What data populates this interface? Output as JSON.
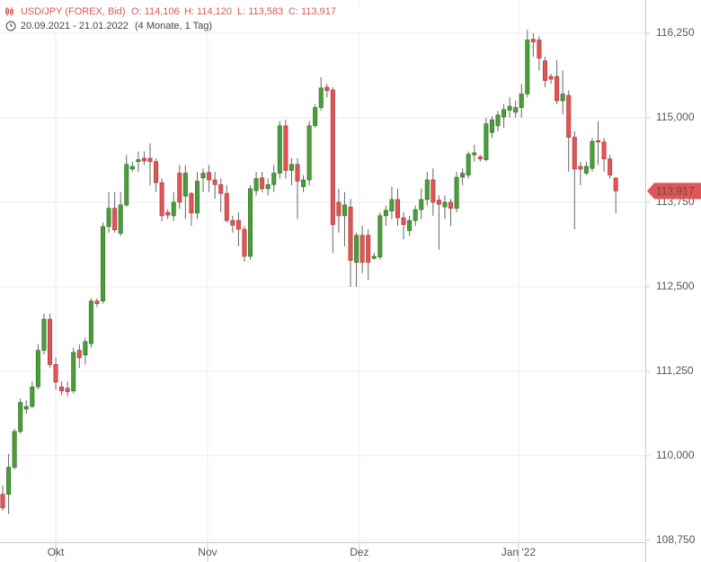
{
  "chart_data": {
    "type": "candlestick",
    "title": "USD/JPY (FOREX, Bid)",
    "ohlc_labels": [
      "O: 114,106",
      "H: 114,120",
      "L: 113,583",
      "C: 113,917"
    ],
    "date_range": "20.09.2021 - 21.01.2022",
    "period": "(4 Monate, 1 Tag)",
    "price_tag": "113,917",
    "up_color": "#4a9e3a",
    "down_color": "#e05555",
    "grid": true,
    "xlim": [
      -0.46,
      109
    ],
    "xticks": [
      {
        "value": 9,
        "label": "Okt"
      },
      {
        "value": 34.75,
        "label": "Nov"
      },
      {
        "value": 60.5,
        "label": "Dez"
      },
      {
        "value": 87.5,
        "label": "Jan '22"
      }
    ],
    "ylim": [
      108.43,
      116.74
    ],
    "yticks": [
      {
        "value": 108.75,
        "label": "108,750"
      },
      {
        "value": 110,
        "label": "110,000"
      },
      {
        "value": 111.25,
        "label": "111,250"
      },
      {
        "value": 112.5,
        "label": "112,500"
      },
      {
        "value": 113.75,
        "label": "113,750"
      },
      {
        "value": 115,
        "label": "115,000"
      },
      {
        "value": 116.25,
        "label": "116,250"
      }
    ],
    "open": [
      109.43,
      109.43,
      109.83,
      110.36,
      110.69,
      110.73,
      111.02,
      111.56,
      112.02,
      111.35,
      111.02,
      111.0,
      110.96,
      111.56,
      111.49,
      111.66,
      112.29,
      112.29,
      113.39,
      113.66,
      113.29,
      113.71,
      114.24,
      114.35,
      114.4,
      114.4,
      114.35,
      114.04,
      113.6,
      113.55,
      114.18,
      113.84,
      113.88,
      113.59,
      114.11,
      114.19,
      114.08,
      114.01,
      113.88,
      113.48,
      113.48,
      113.35,
      112.95,
      113.92,
      114.11,
      113.95,
      114.01,
      114.18,
      114.88,
      114.22,
      114.31,
      113.98,
      114.08,
      114.88,
      115.15,
      115.45,
      115.41,
      113.75,
      113.55,
      113.68,
      112.86,
      113.26,
      113.26,
      112.92,
      112.94,
      113.55,
      113.62,
      113.79,
      113.52,
      113.33,
      113.48,
      113.64,
      113.79,
      114.08,
      113.78,
      113.68,
      113.75,
      113.66,
      114.12,
      114.15,
      114.45,
      114.42,
      114.38,
      114.78,
      114.88,
      115.01,
      115.11,
      115.08,
      115.15,
      115.35,
      116.16,
      116.15,
      115.84,
      115.61,
      115.61,
      115.25,
      115.33,
      114.71,
      114.28,
      114.18,
      114.25,
      114.66,
      114.64,
      114.39,
      114.106
    ],
    "high": [
      109.56,
      110.03,
      110.4,
      110.85,
      110.82,
      111.1,
      111.65,
      112.1,
      112.1,
      111.45,
      111.1,
      111.1,
      111.6,
      111.65,
      111.75,
      112.33,
      112.33,
      113.45,
      113.9,
      113.9,
      113.9,
      114.45,
      114.35,
      114.5,
      114.5,
      114.62,
      114.4,
      114.1,
      113.65,
      113.9,
      114.3,
      114.3,
      113.9,
      114.2,
      114.25,
      114.3,
      114.2,
      114.1,
      114.0,
      113.55,
      113.6,
      113.4,
      114.0,
      114.2,
      114.2,
      114.1,
      114.3,
      114.95,
      114.97,
      114.4,
      114.4,
      114.15,
      114.95,
      115.2,
      115.6,
      115.5,
      115.45,
      113.95,
      113.9,
      113.8,
      113.3,
      113.4,
      113.35,
      113.0,
      113.6,
      113.7,
      113.98,
      113.95,
      113.6,
      113.55,
      113.7,
      113.95,
      114.2,
      114.25,
      113.85,
      113.85,
      113.8,
      114.2,
      114.25,
      114.5,
      114.6,
      114.45,
      115.0,
      115.02,
      115.1,
      115.2,
      115.3,
      115.25,
      115.5,
      116.3,
      116.25,
      116.2,
      115.9,
      115.65,
      115.85,
      115.7,
      115.4,
      114.8,
      114.35,
      114.35,
      114.7,
      114.95,
      114.7,
      114.45,
      114.12
    ],
    "low": [
      109.19,
      109.14,
      109.8,
      110.33,
      110.62,
      110.7,
      110.98,
      111.5,
      111.3,
      110.98,
      110.9,
      110.88,
      110.92,
      111.3,
      111.35,
      111.6,
      112.2,
      112.25,
      113.3,
      113.3,
      113.25,
      113.68,
      114.2,
      114.2,
      114.3,
      114.0,
      113.9,
      113.47,
      113.5,
      113.47,
      113.65,
      113.5,
      113.4,
      113.5,
      113.9,
      113.9,
      113.8,
      113.6,
      113.45,
      113.3,
      113.1,
      112.87,
      112.9,
      113.85,
      113.9,
      113.85,
      113.9,
      114.1,
      114.1,
      114.0,
      113.5,
      113.9,
      114.0,
      114.85,
      115.1,
      115.3,
      113.0,
      113.3,
      113.1,
      112.5,
      112.5,
      112.7,
      112.6,
      112.9,
      112.9,
      113.4,
      113.5,
      113.4,
      113.2,
      113.25,
      113.4,
      113.5,
      113.7,
      113.55,
      113.05,
      113.5,
      113.4,
      113.6,
      114.0,
      114.1,
      114.35,
      114.35,
      114.35,
      114.7,
      114.8,
      114.85,
      115.0,
      115.0,
      115.0,
      115.3,
      115.9,
      115.7,
      115.45,
      115.5,
      115.2,
      115.05,
      114.2,
      113.35,
      114.0,
      114.15,
      114.2,
      114.3,
      114.2,
      114.1,
      113.583
    ],
    "close": [
      109.23,
      109.83,
      110.36,
      110.79,
      110.73,
      111.02,
      111.56,
      112.02,
      111.35,
      111.09,
      110.96,
      110.95,
      111.53,
      111.45,
      111.69,
      112.29,
      112.25,
      113.39,
      113.66,
      113.34,
      113.71,
      114.31,
      114.28,
      114.38,
      114.36,
      114.35,
      114.04,
      113.55,
      113.56,
      113.75,
      113.75,
      114.18,
      113.59,
      114.06,
      114.18,
      114.08,
      114.01,
      113.88,
      113.48,
      113.41,
      113.35,
      112.95,
      113.95,
      114.1,
      113.95,
      114.01,
      114.18,
      114.88,
      114.22,
      114.31,
      114.06,
      114.08,
      114.88,
      115.15,
      115.44,
      115.4,
      113.42,
      113.55,
      113.71,
      112.89,
      113.26,
      112.86,
      112.86,
      112.95,
      113.55,
      113.63,
      113.79,
      113.52,
      113.42,
      113.48,
      113.64,
      113.79,
      114.08,
      113.75,
      113.72,
      113.75,
      113.66,
      114.12,
      114.18,
      114.46,
      114.48,
      114.39,
      114.91,
      114.97,
      115.04,
      115.12,
      115.17,
      115.15,
      115.35,
      116.15,
      116.12,
      115.88,
      115.55,
      115.57,
      115.25,
      115.35,
      114.71,
      114.24,
      114.24,
      114.28,
      114.65,
      114.64,
      114.39,
      114.15,
      113.917
    ]
  }
}
